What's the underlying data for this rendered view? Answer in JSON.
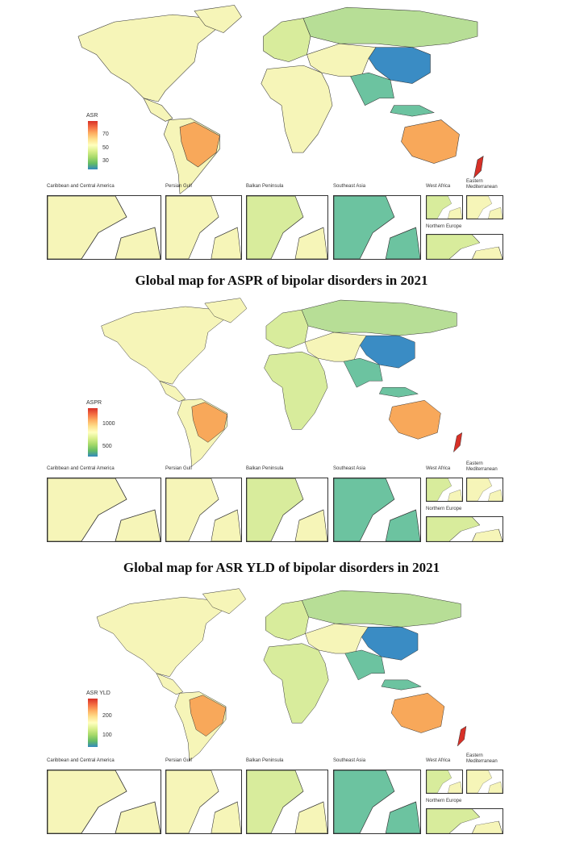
{
  "panels": [
    {
      "legend": {
        "title": "ASR",
        "ticks": [
          {
            "label": "70",
            "value": 70
          },
          {
            "label": "50",
            "value": 50
          },
          {
            "label": "30",
            "value": 30
          }
        ],
        "range": [
          20,
          80
        ]
      },
      "insets": [
        "Caribbean and Central America",
        "Persian Gulf",
        "Balkan Peninsula",
        "Southeast Asia",
        "West Africa",
        "Eastern Mediterranean",
        "Northern Europe"
      ]
    },
    {
      "title": "Global map for ASPR of bipolar disorders in 2021",
      "legend": {
        "title": "ASPR",
        "ticks": [
          {
            "label": "1000",
            "value": 1000
          },
          {
            "label": "500",
            "value": 500
          }
        ],
        "range": [
          300,
          1250
        ]
      },
      "insets": [
        "Caribbean and Central America",
        "Persian Gulf",
        "Balkan Peninsula",
        "Southeast Asia",
        "West Africa",
        "Eastern Mediterranean",
        "Northern Europe"
      ]
    },
    {
      "title": "Global map for ASR YLD of bipolar disorders in 2021",
      "legend": {
        "title": "ASR YLD",
        "ticks": [
          {
            "label": "200",
            "value": 200
          },
          {
            "label": "100",
            "value": 100
          }
        ],
        "range": [
          60,
          270
        ]
      },
      "insets": [
        "Caribbean and Central America",
        "Persian Gulf",
        "Balkan Peninsula",
        "Southeast Asia",
        "West Africa",
        "Eastern Mediterranean",
        "Northern Europe"
      ]
    }
  ],
  "colors": {
    "high": "#d73027",
    "orange": "#f8a85a",
    "light_yellow": "#f6f5b8",
    "yellow_green": "#d8ec9c",
    "green": "#b7de96",
    "teal": "#6cc3a0",
    "blue": "#3a8cc4"
  }
}
